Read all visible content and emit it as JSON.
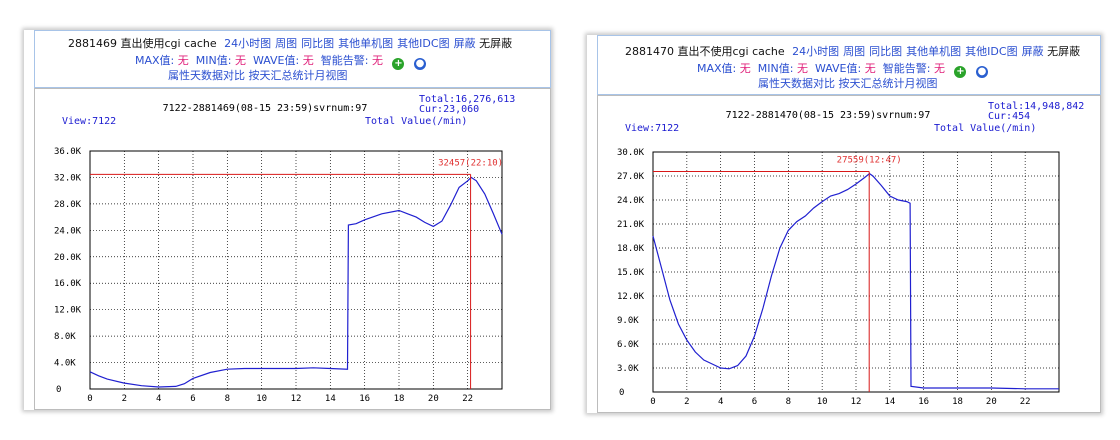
{
  "panels": [
    {
      "server_id": "2881469",
      "title_text": "直出使用cgi cache",
      "links": [
        "24小时图",
        "周图",
        "同比图",
        "其他单机图",
        "其他IDC图",
        "屏蔽"
      ],
      "no_mask": "无屏蔽",
      "max_label": "MAX值:",
      "max_value": "无",
      "min_label": "MIN值:",
      "min_value": "无",
      "wave_label": "WAVE值:",
      "wave_value": "无",
      "alarm_label": "智能告警:",
      "alarm_value": "无",
      "attr_links": [
        "属性天数据对比",
        "按天汇总统计月视图"
      ],
      "add_icon": "plus-circle-icon",
      "search_icon": "magnifier-icon",
      "chart_title": "7122-2881469(08-15 23:59)svrnum:97",
      "total_text": "Total:16,276,613",
      "cur_text": "Cur:23,060",
      "view_text": "View:7122",
      "total_value_label": "Total Value(/min)",
      "peak_label": "32457(22:10)"
    },
    {
      "server_id": "2881470",
      "title_text": "直出不使用cgi cache",
      "links": [
        "24小时图",
        "周图",
        "同比图",
        "其他单机图",
        "其他IDC图",
        "屏蔽"
      ],
      "no_mask": "无屏蔽",
      "max_label": "MAX值:",
      "max_value": "无",
      "min_label": "MIN值:",
      "min_value": "无",
      "wave_label": "WAVE值:",
      "wave_value": "无",
      "alarm_label": "智能告警:",
      "alarm_value": "无",
      "attr_links": [
        "属性天数据对比",
        "按天汇总统计月视图"
      ],
      "add_icon": "plus-circle-icon",
      "search_icon": "magnifier-icon",
      "chart_title": "7122-2881470(08-15 23:59)svrnum:97",
      "total_text": "Total:14,948,842",
      "cur_text": "Cur:454",
      "view_text": "View:7122",
      "total_value_label": "Total Value(/min)",
      "peak_label": "27559(12:47)"
    }
  ],
  "chart_data": [
    {
      "type": "line",
      "title": "7122-2881469(08-15 23:59)svrnum:97",
      "ylabel": "Total Value(/min)",
      "x_ticks": [
        "0",
        "2",
        "4",
        "6",
        "8",
        "10",
        "12",
        "14",
        "16",
        "18",
        "20",
        "22"
      ],
      "y_ticks": [
        "0",
        "4.0K",
        "8.0K",
        "12.0K",
        "16.0K",
        "20.0K",
        "24.0K",
        "28.0K",
        "32.0K",
        "36.0K"
      ],
      "xlim": [
        0,
        24
      ],
      "ylim": [
        0,
        36000
      ],
      "grid": true,
      "series": [
        {
          "color": "#2020d0",
          "x": [
            0,
            0.5,
            1,
            2,
            3,
            4,
            5,
            5.5,
            6,
            7,
            8,
            9,
            10,
            11,
            12,
            13,
            14,
            15,
            15.05,
            15.5,
            16,
            17,
            18,
            18.5,
            19,
            19.5,
            20,
            20.5,
            21,
            21.5,
            22,
            22.2,
            22.5,
            23,
            23.5,
            24
          ],
          "y": [
            2600,
            2000,
            1500,
            900,
            500,
            300,
            400,
            800,
            1600,
            2500,
            3000,
            3100,
            3100,
            3100,
            3100,
            3200,
            3100,
            3000,
            24800,
            25000,
            25600,
            26500,
            27000,
            26500,
            26000,
            25200,
            24600,
            25400,
            27800,
            30500,
            31500,
            32000,
            31500,
            29500,
            26500,
            23400
          ]
        }
      ],
      "peak": {
        "x": 22.17,
        "y": 32457,
        "label": "32457(22:10)"
      }
    },
    {
      "type": "line",
      "title": "7122-2881470(08-15 23:59)svrnum:97",
      "ylabel": "Total Value(/min)",
      "x_ticks": [
        "0",
        "2",
        "4",
        "6",
        "8",
        "10",
        "12",
        "14",
        "16",
        "18",
        "20",
        "22"
      ],
      "y_ticks": [
        "0",
        "3.0K",
        "6.0K",
        "9.0K",
        "12.0K",
        "15.0K",
        "18.0K",
        "21.0K",
        "24.0K",
        "27.0K",
        "30.0K"
      ],
      "xlim": [
        0,
        24
      ],
      "ylim": [
        0,
        30000
      ],
      "grid": true,
      "series": [
        {
          "color": "#2020d0",
          "x": [
            0,
            0.5,
            1,
            1.5,
            2,
            2.5,
            3,
            3.5,
            4,
            4.5,
            5,
            5.5,
            6,
            6.5,
            7,
            7.5,
            8,
            8.5,
            9,
            9.5,
            10,
            10.5,
            11,
            11.5,
            12,
            12.5,
            12.8,
            13,
            13.5,
            14,
            14.5,
            15,
            15.2,
            15.25,
            16,
            18,
            20,
            22,
            24
          ],
          "y": [
            19500,
            15500,
            11500,
            8500,
            6500,
            5000,
            4000,
            3500,
            3000,
            2900,
            3300,
            4500,
            7000,
            10500,
            14500,
            18000,
            20200,
            21300,
            22000,
            23000,
            23800,
            24500,
            24800,
            25300,
            26000,
            26800,
            27300,
            27000,
            25800,
            24500,
            24000,
            23800,
            23600,
            700,
            500,
            500,
            500,
            400,
            400
          ]
        }
      ],
      "peak": {
        "x": 12.78,
        "y": 27559,
        "label": "27559(12:47)"
      }
    }
  ]
}
